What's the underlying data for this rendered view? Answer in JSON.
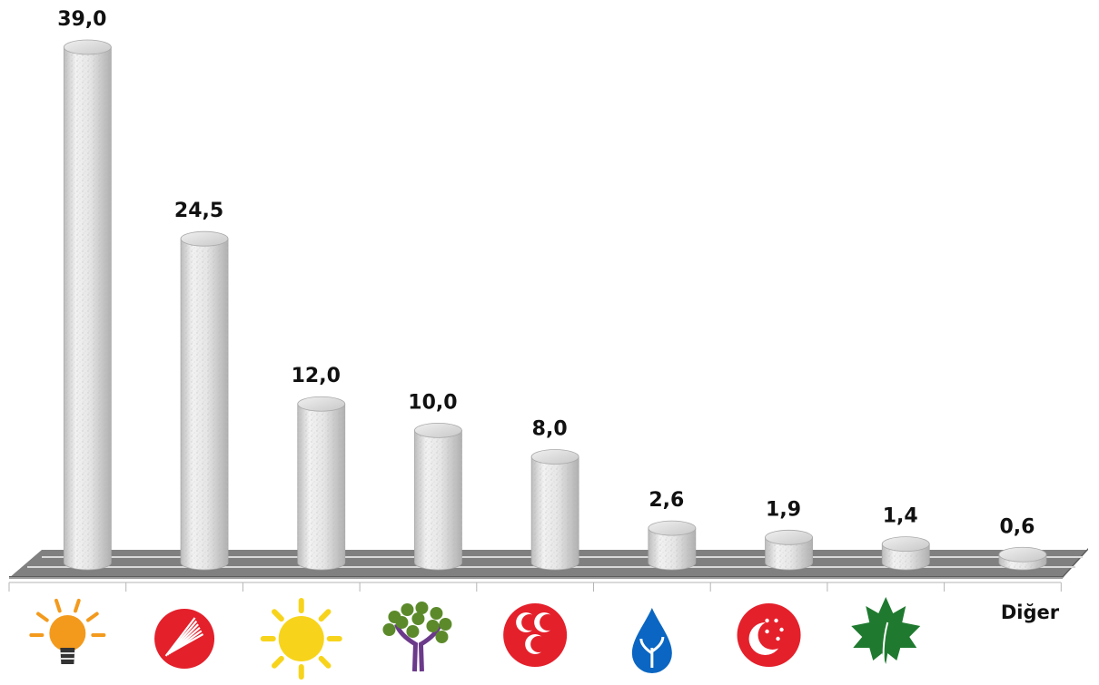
{
  "chart_data": {
    "type": "bar",
    "style": "3d-cylinder",
    "categories": [
      {
        "label": "",
        "icon": "lightbulb-icon",
        "color": "#f39a1d"
      },
      {
        "label": "",
        "icon": "six-arrows-icon",
        "color": "#e4202b"
      },
      {
        "label": "",
        "icon": "sun-icon",
        "color": "#f7d41b"
      },
      {
        "label": "",
        "icon": "tree-icon",
        "color": "#5c8a2b"
      },
      {
        "label": "",
        "icon": "three-crescents-icon",
        "color": "#e4202b"
      },
      {
        "label": "",
        "icon": "water-drop-icon",
        "color": "#0a66c2"
      },
      {
        "label": "",
        "icon": "crescent-stars-icon",
        "color": "#e4202b"
      },
      {
        "label": "",
        "icon": "leaf-icon",
        "color": "#1f7a2f"
      },
      {
        "label": "Diğer",
        "icon": "",
        "color": ""
      }
    ],
    "values": [
      39.0,
      24.5,
      12.0,
      10.0,
      8.0,
      2.6,
      1.9,
      1.4,
      0.6
    ],
    "value_labels": [
      "39,0",
      "24,5",
      "12,0",
      "10,0",
      "8,0",
      "2,6",
      "1,9",
      "1,4",
      "0,6"
    ],
    "ylim": [
      0,
      40
    ],
    "grid": false,
    "legend": "none",
    "bar_color": "#d9d9d9",
    "floor_color": "#808080"
  }
}
